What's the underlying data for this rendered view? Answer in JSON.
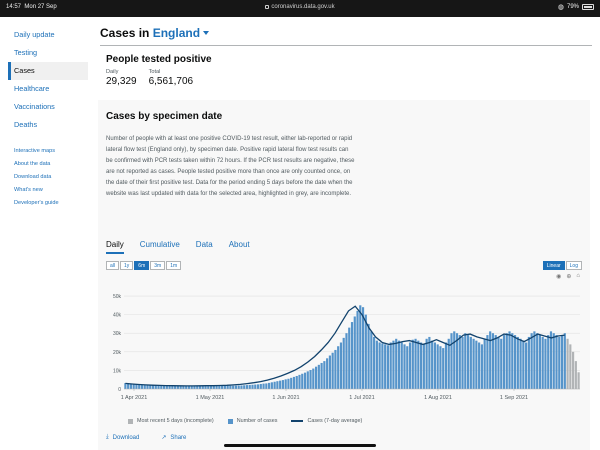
{
  "statusbar": {
    "time": "14:57",
    "date": "Mon 27 Sep",
    "url": "coronavirus.data.gov.uk",
    "battery": "79%"
  },
  "sidebar": {
    "items": [
      {
        "label": "Daily update",
        "active": false
      },
      {
        "label": "Testing",
        "active": false
      },
      {
        "label": "Cases",
        "active": true
      },
      {
        "label": "Healthcare",
        "active": false
      },
      {
        "label": "Vaccinations",
        "active": false
      },
      {
        "label": "Deaths",
        "active": false
      }
    ],
    "links": [
      "Interactive maps",
      "About the data",
      "Download data",
      "What's new",
      "Developer's guide"
    ]
  },
  "header": {
    "prefix": "Cases in",
    "area": "England"
  },
  "headline": {
    "title": "People tested positive",
    "daily_label": "Daily",
    "daily_value": "29,329",
    "total_label": "Total",
    "total_value": "6,561,706"
  },
  "card": {
    "title": "Cases by specimen date",
    "description": "Number of people with at least one positive COVID-19 test result, either lab-reported or rapid lateral flow test (England only), by specimen date. Positive rapid lateral flow test results can be confirmed with PCR tests taken within 72 hours. If the PCR test results are negative, these are not reported as cases. People tested positive more than once are only counted once, on the date of their first positive test. Data for the period ending 5 days before the date when the website was last updated with data for the selected area, highlighted in grey, are incomplete.",
    "tabs": [
      "Daily",
      "Cumulative",
      "Data",
      "About"
    ],
    "active_tab": "Daily",
    "ranges": [
      "all",
      "1y",
      "6m",
      "3m",
      "1m"
    ],
    "active_range": "6m",
    "scales": [
      "Linear",
      "Log"
    ],
    "active_scale": "Linear",
    "legend": {
      "incomplete": "Most recent 5 days (incomplete)",
      "cases": "Number of cases",
      "avg": "Cases (7-day average)"
    },
    "actions": {
      "download": "Download",
      "share": "Share"
    }
  },
  "colors": {
    "accent": "#1d70b8",
    "bar": "#5694ca",
    "incomplete": "#b1b4b6",
    "line": "#12436d"
  },
  "chart_data": {
    "type": "bar",
    "y_ticks": [
      "0",
      "10k",
      "20k",
      "30k",
      "40k",
      "50k"
    ],
    "ylim": [
      0,
      57000
    ],
    "x_ticks": [
      "1 Apr 2021",
      "1 May 2021",
      "1 Jun 2021",
      "1 Jul 2021",
      "1 Aug 2021",
      "1 Sep 2021"
    ],
    "series": [
      {
        "name": "Number of cases",
        "values": [
          3200,
          2900,
          2700,
          2600,
          2500,
          2450,
          2300,
          2200,
          2100,
          2000,
          2050,
          2100,
          2000,
          1950,
          1900,
          1850,
          1800,
          1750,
          1700,
          1800,
          1750,
          1700,
          1650,
          1600,
          1650,
          1600,
          1550,
          1500,
          1600,
          1550,
          1500,
          1550,
          1600,
          1650,
          1600,
          1700,
          1650,
          1750,
          1800,
          1750,
          1800,
          1850,
          1900,
          2000,
          2100,
          2200,
          2300,
          2400,
          2500,
          2700,
          2900,
          3000,
          3300,
          3600,
          3900,
          4200,
          4500,
          4800,
          5200,
          5500,
          6000,
          6500,
          7000,
          7600,
          8200,
          8800,
          9500,
          10200,
          11000,
          12000,
          13000,
          14000,
          15000,
          16500,
          18000,
          19500,
          21000,
          23000,
          25000,
          27500,
          30000,
          33000,
          36000,
          39000,
          42000,
          45000,
          44000,
          40000,
          35000,
          31000,
          28000,
          26000,
          25000,
          24500,
          24000,
          23500,
          25000,
          26000,
          27000,
          26000,
          25000,
          24000,
          23000,
          25000,
          26500,
          27000,
          26000,
          25000,
          24000,
          27000,
          28000,
          26000,
          25000,
          24000,
          23000,
          22000,
          25000,
          27000,
          30000,
          31000,
          30000,
          29000,
          28000,
          30000,
          29000,
          28000,
          27000,
          26000,
          25000,
          24000,
          27000,
          29000,
          31000,
          30000,
          29000,
          28000,
          27000,
          29000,
          30000,
          31000,
          30000,
          29000,
          28000,
          27000,
          26000,
          25000,
          28000,
          30000,
          31000,
          30000,
          29000,
          28000,
          27000,
          29000,
          31000,
          30000,
          29000,
          28000,
          29000,
          30000
        ]
      },
      {
        "name": "Most recent 5 days (incomplete)",
        "values": [
          27000,
          24000,
          20000,
          15000,
          9000
        ]
      },
      {
        "name": "Cases (7-day average)",
        "values": [
          3000,
          2700,
          2400,
          2200,
          2050,
          1950,
          1850,
          1750,
          1700,
          1650,
          1650,
          1700,
          1750,
          1800,
          1900,
          2000,
          2200,
          2500,
          2900,
          3400,
          4000,
          4800,
          5800,
          7000,
          8400,
          10000,
          12000,
          14500,
          17500,
          21000,
          25000,
          30000,
          36000,
          42000,
          44500,
          40000,
          33000,
          28000,
          25000,
          24000,
          24500,
          25500,
          26000,
          25000,
          24000,
          25000,
          26500,
          25000,
          23500,
          26000,
          29000,
          29500,
          28000,
          27000,
          26000,
          27500,
          29500,
          29000,
          27000,
          25500,
          27500,
          29500,
          28500,
          27500,
          28500,
          29000
        ]
      }
    ]
  }
}
